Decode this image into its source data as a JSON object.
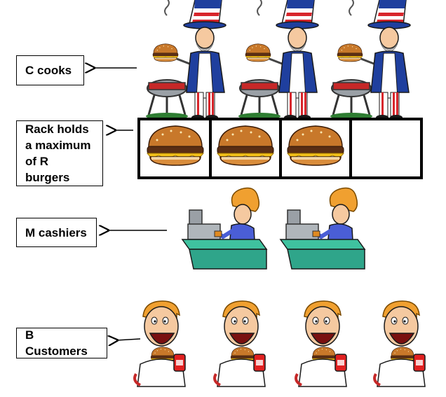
{
  "labels": {
    "cooks": "C cooks",
    "rack": [
      "Rack holds",
      "a maximum",
      "of R burgers"
    ],
    "cashiers": "M cashiers",
    "customers": "B Customers"
  },
  "counts": {
    "cooks": 3,
    "rack_slots": 4,
    "rack_burgers": 3,
    "cashiers": 2,
    "customers": 4
  },
  "colors": {
    "hat_blue": "#1f3f9e",
    "hat_red": "#d8262c",
    "bun": "#c8782a",
    "patty": "#5a2e14",
    "cheese": "#f4c21a",
    "counter": "#2fa58a",
    "hair": "#f0a030",
    "cashier_shirt": "#4a5ed6",
    "customer_skin": "#f5c9a0",
    "can_red": "#e02020"
  }
}
